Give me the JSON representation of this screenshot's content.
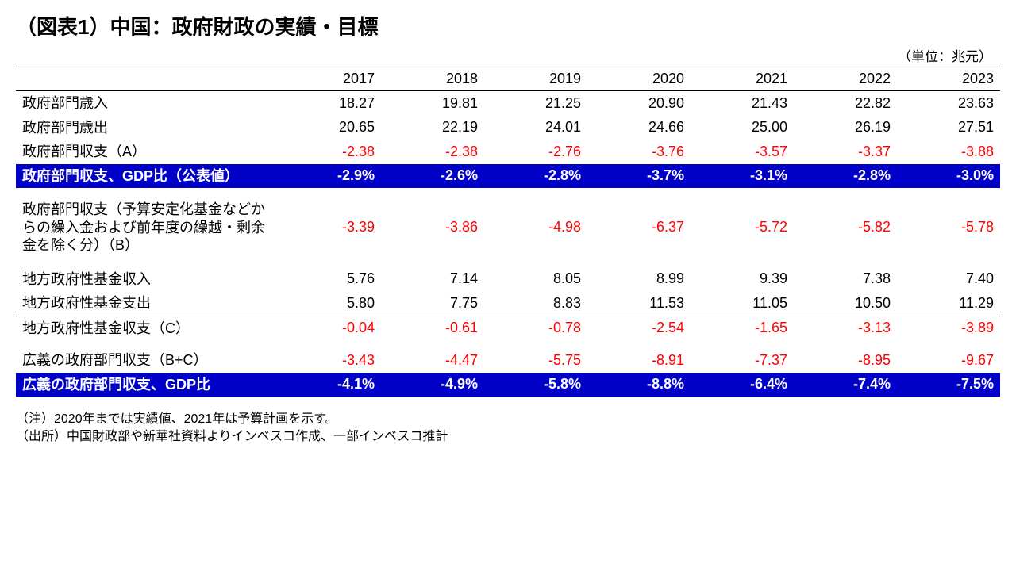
{
  "title": "（図表1）中国：政府財政の実績・目標",
  "unit": "（単位：兆元）",
  "years": [
    "2017",
    "2018",
    "2019",
    "2020",
    "2021",
    "2022",
    "2023"
  ],
  "rows": [
    {
      "label": "政府部門歳入",
      "vals": [
        "18.27",
        "19.81",
        "21.25",
        "20.90",
        "21.43",
        "22.82",
        "23.63"
      ],
      "red": false
    },
    {
      "label": "政府部門歳出",
      "vals": [
        "20.65",
        "22.19",
        "24.01",
        "24.66",
        "25.00",
        "26.19",
        "27.51"
      ],
      "red": false
    },
    {
      "label": "政府部門収支（A）",
      "vals": [
        "-2.38",
        "-2.38",
        "-2.76",
        "-3.76",
        "-3.57",
        "-3.37",
        "-3.88"
      ],
      "red": true
    },
    {
      "band": true,
      "label": "政府部門収支、GDP比（公表値）",
      "vals": [
        "-2.9%",
        "-2.6%",
        "-2.8%",
        "-3.7%",
        "-3.1%",
        "-2.8%",
        "-3.0%"
      ]
    },
    {
      "spacer": true
    },
    {
      "label": "政府部門収支（予算安定化基金などからの繰入金および前年度の繰越・剰余金を除く分）（B）",
      "vals": [
        "-3.39",
        "-3.86",
        "-4.98",
        "-6.37",
        "-5.72",
        "-5.82",
        "-5.78"
      ],
      "red": true,
      "multiline": true
    },
    {
      "spacer": true
    },
    {
      "label": "地方政府性基金収入",
      "vals": [
        "5.76",
        "7.14",
        "8.05",
        "8.99",
        "9.39",
        "7.38",
        "7.40"
      ],
      "red": false
    },
    {
      "label": "地方政府性基金支出",
      "vals": [
        "5.80",
        "7.75",
        "8.83",
        "11.53",
        "11.05",
        "10.50",
        "11.29"
      ],
      "red": false
    },
    {
      "label": "地方政府性基金収支（C）",
      "vals": [
        "-0.04",
        "-0.61",
        "-0.78",
        "-2.54",
        "-1.65",
        "-3.13",
        "-3.89"
      ],
      "red": true,
      "divtop": true
    },
    {
      "spacer": true
    },
    {
      "label": "広義の政府部門収支（B+C）",
      "vals": [
        "-3.43",
        "-4.47",
        "-5.75",
        "-8.91",
        "-7.37",
        "-8.95",
        "-9.67"
      ],
      "red": true
    },
    {
      "band": true,
      "label": "広義の政府部門収支、GDP比",
      "vals": [
        "-4.1%",
        "-4.9%",
        "-5.8%",
        "-8.8%",
        "-6.4%",
        "-7.4%",
        "-7.5%"
      ]
    }
  ],
  "note1": "（注）2020年までは実績値、2021年は予算計画を示す。",
  "note2": "（出所）中国財政部や新華社資料よりインベスコ作成、一部インベスコ推計",
  "colors": {
    "band_bg": "#0000c8",
    "band_fg": "#ffffff",
    "negative": "#ff0000",
    "rule": "#000000",
    "text": "#000000",
    "bg": "#ffffff"
  },
  "fontsize": {
    "title": 26,
    "body": 18,
    "unit": 17,
    "notes": 16
  }
}
